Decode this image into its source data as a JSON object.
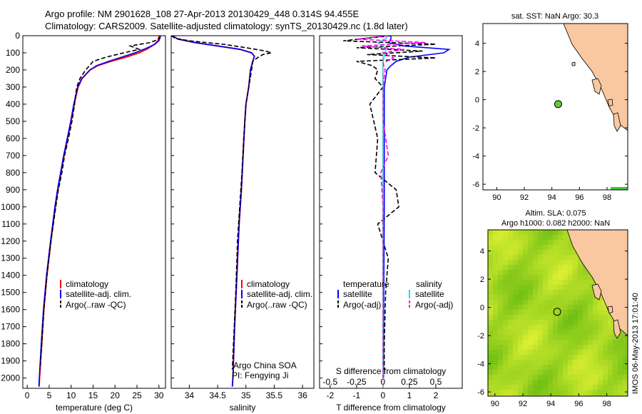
{
  "header": {
    "line1": "Argo profile: NM 2901628_108 27-Apr-2013 20130429_448 0.314S 94.455E",
    "line2": "Climatology: CARS2009. Satellite-adjusted climatology: synTS_20130429.nc (1.8d later)"
  },
  "colors": {
    "climatology": "#ff0000",
    "satellite": "#0000ff",
    "argo": "#000000",
    "sal_satellite": "#00e5e5",
    "sal_argo": "#ff00ff",
    "land": "#f9c8a0",
    "argo_marker": "#66cc33"
  },
  "depth_ticks": [
    "0",
    "100",
    "200",
    "300",
    "400",
    "500",
    "600",
    "700",
    "800",
    "900",
    "1000",
    "1100",
    "1200",
    "1300",
    "1400",
    "1500",
    "1600",
    "1700",
    "1800",
    "1900",
    "2000"
  ],
  "credit": "IMOS 06-May-2013 17:01:40",
  "chart_data": [
    {
      "type": "line",
      "panel": "temperature",
      "xlabel": "temperature (deg C)",
      "xlim": [
        -1,
        31.5
      ],
      "ylim": [
        2060,
        0
      ],
      "xticks": [
        "0",
        "5",
        "10",
        "15",
        "20",
        "25",
        "30"
      ],
      "legend": [
        "climatology",
        "satellite-adj. clim.",
        "Argo(..raw -QC)"
      ],
      "legend_position": "bottom-center",
      "series": [
        {
          "name": "climatology",
          "depth": [
            0,
            10,
            30,
            50,
            75,
            100,
            125,
            150,
            175,
            200,
            250,
            300,
            400,
            500,
            600,
            700,
            800,
            900,
            1000,
            1200,
            1400,
            1600,
            1800,
            2000,
            2050
          ],
          "values": [
            30.0,
            30.0,
            29.8,
            29.0,
            27.5,
            25.5,
            22.5,
            19.0,
            16.0,
            14.3,
            12.5,
            11.6,
            10.7,
            10.0,
            9.2,
            8.4,
            7.7,
            7.0,
            6.4,
            5.4,
            4.5,
            3.8,
            3.3,
            2.8,
            2.7
          ]
        },
        {
          "name": "satellite-adj. clim.",
          "depth": [
            0,
            10,
            30,
            50,
            75,
            100,
            125,
            150,
            175,
            200,
            250,
            300,
            400,
            500,
            600,
            700,
            800,
            900,
            1000,
            1200,
            1400,
            1600,
            1800,
            2000,
            2050
          ],
          "values": [
            30.3,
            30.3,
            30.0,
            29.1,
            27.0,
            24.5,
            21.5,
            18.5,
            15.8,
            14.3,
            12.4,
            11.5,
            10.6,
            9.9,
            9.1,
            8.3,
            7.6,
            6.9,
            6.3,
            5.3,
            4.4,
            3.7,
            3.2,
            2.75,
            2.65
          ]
        },
        {
          "name": "Argo(..raw -QC)",
          "depth": [
            0,
            10,
            25,
            40,
            60,
            80,
            100,
            125,
            150,
            175,
            200,
            250,
            300,
            350,
            400,
            500,
            600,
            700,
            800,
            900,
            1000,
            1200,
            1400,
            1600,
            1800,
            1950
          ],
          "values": [
            30.3,
            30.2,
            29.5,
            28.0,
            23.5,
            25.5,
            22.0,
            18.0,
            15.0,
            14.2,
            13.3,
            12.0,
            11.3,
            11.0,
            10.8,
            10.2,
            9.4,
            8.5,
            7.9,
            7.1,
            6.5,
            5.4,
            4.5,
            3.8,
            3.3,
            2.9
          ]
        }
      ]
    },
    {
      "type": "line",
      "panel": "salinity",
      "xlabel": "salinity",
      "xlim": [
        33.68,
        36.2
      ],
      "ylim": [
        2060,
        0
      ],
      "xticks": [
        "34",
        "34.5",
        "35",
        "35.5",
        "36"
      ],
      "legend": [
        "climatology",
        "satellite-adj. clim.",
        "Argo(..raw -QC)"
      ],
      "legend_position": "bottom-center",
      "annotations": [
        "Argo China SOA",
        "PI: Fengying Ji"
      ],
      "series": [
        {
          "name": "climatology",
          "depth": [
            0,
            20,
            40,
            60,
            80,
            100,
            120,
            150,
            200,
            300,
            400,
            500,
            700,
            900,
            1100,
            1400,
            1700,
            2000,
            2050
          ],
          "values": [
            33.7,
            33.8,
            34.1,
            34.5,
            34.9,
            35.1,
            35.15,
            35.12,
            35.08,
            35.05,
            35.0,
            34.98,
            34.95,
            34.92,
            34.88,
            34.84,
            34.8,
            34.77,
            34.76
          ]
        },
        {
          "name": "satellite-adj. clim.",
          "depth": [
            0,
            20,
            40,
            60,
            80,
            100,
            120,
            150,
            200,
            300,
            400,
            500,
            700,
            900,
            1100,
            1400,
            1700,
            2000,
            2050
          ],
          "values": [
            33.7,
            33.8,
            34.1,
            34.5,
            34.9,
            35.1,
            35.15,
            35.12,
            35.08,
            35.05,
            35.0,
            34.98,
            34.95,
            34.92,
            34.88,
            34.84,
            34.8,
            34.77,
            34.76
          ]
        },
        {
          "name": "Argo(..raw -QC)",
          "depth": [
            0,
            15,
            30,
            50,
            70,
            90,
            100,
            110,
            130,
            150,
            200,
            300,
            400,
            600,
            800,
            1000,
            1200,
            1500,
            1800,
            1950
          ],
          "values": [
            33.68,
            33.75,
            34.0,
            34.6,
            35.0,
            35.35,
            35.45,
            35.3,
            35.2,
            35.12,
            35.1,
            35.05,
            35.0,
            34.96,
            34.93,
            34.89,
            34.85,
            34.82,
            34.78,
            34.76
          ]
        }
      ]
    },
    {
      "type": "line",
      "panel": "difference",
      "xlabel": "T difference from climatology",
      "xlabel_top": "S difference from climatology",
      "xlim": [
        -2.4,
        3.0
      ],
      "ylim": [
        2060,
        0
      ],
      "xticks": [
        "-2",
        "-1",
        "0",
        "1",
        "2"
      ],
      "xticks_top": [
        "-0.5",
        "-0.25",
        "0",
        "0.25",
        "0.5"
      ],
      "legend_titles": [
        "temperature",
        "salinity"
      ],
      "legend": [
        "satellite",
        "Argo(-adj)",
        "satellite",
        "Argo(-adj)"
      ],
      "legend_position": "bottom-center",
      "series": [
        {
          "name": "satellite",
          "depth": [
            0,
            20,
            40,
            60,
            80,
            100,
            125,
            150,
            175,
            200,
            250,
            300,
            400,
            600,
            800,
            1000,
            1500,
            2000
          ],
          "values": [
            0.3,
            0.3,
            0.2,
            0.8,
            2.5,
            2.3,
            1.0,
            0.5,
            0.3,
            0.15,
            0.1,
            0.05,
            0.05,
            0.05,
            0.05,
            0.05,
            0.03,
            0.02
          ]
        },
        {
          "name": "Argo(-adj)",
          "depth": [
            0,
            30,
            50,
            70,
            90,
            110,
            130,
            150,
            175,
            200,
            250,
            300,
            400,
            600,
            800,
            900,
            1000,
            1100,
            1300,
            1500,
            1800,
            1950
          ],
          "values": [
            0.3,
            -1.5,
            2.0,
            -1.0,
            1.5,
            -0.6,
            2.0,
            -1.0,
            -0.4,
            -0.2,
            -0.3,
            0.0,
            -0.5,
            -0.2,
            -0.3,
            0.5,
            0.6,
            -0.2,
            0.2,
            0.1,
            0.05,
            0.05
          ]
        },
        {
          "name": "satellite (S)",
          "depth": [
            0,
            20,
            40,
            60,
            80,
            100,
            150,
            200,
            300,
            500,
            1000,
            1500,
            2000
          ],
          "values": [
            0.05,
            0.02,
            -0.05,
            0.0,
            0.03,
            0.02,
            0.0,
            0.0,
            0.0,
            0.0,
            0.0,
            0.0,
            0.0
          ]
        },
        {
          "name": "Argo(-adj) (S)",
          "depth": [
            0,
            20,
            40,
            60,
            80,
            100,
            130,
            160,
            200,
            300,
            500,
            700,
            800,
            1000,
            1200,
            1500,
            1800,
            2000
          ],
          "values": [
            0.05,
            -0.25,
            0.4,
            -0.2,
            0.2,
            0.0,
            0.1,
            0.0,
            0.02,
            0.0,
            0.0,
            0.05,
            -0.02,
            0.0,
            0.0,
            0.0,
            0.0,
            0.0
          ]
        }
      ]
    },
    {
      "type": "map",
      "panel": "sat-sst",
      "title": "sat. SST: NaN Argo: 30.3",
      "xlim": [
        89,
        99.5
      ],
      "ylim": [
        -6.4,
        5.4
      ],
      "xticks": [
        "90",
        "92",
        "94",
        "96",
        "98"
      ],
      "yticks": [
        "-6",
        "-4",
        "-2",
        "0",
        "2",
        "4"
      ],
      "argo_position": [
        94.455,
        -0.314
      ]
    },
    {
      "type": "heatmap",
      "panel": "altimetry",
      "title_line1": "Altim. SLA: 0.075",
      "title_line2": "Argo h1000: 0.082 h2000: NaN",
      "xlim": [
        89.5,
        99.5
      ],
      "ylim": [
        -6.3,
        5.5
      ],
      "xticks": [
        "90",
        "92",
        "94",
        "96",
        "98"
      ],
      "yticks": [
        "-6",
        "-4",
        "-2",
        "0",
        "2",
        "4"
      ],
      "argo_position": [
        94.455,
        -0.314
      ]
    }
  ]
}
